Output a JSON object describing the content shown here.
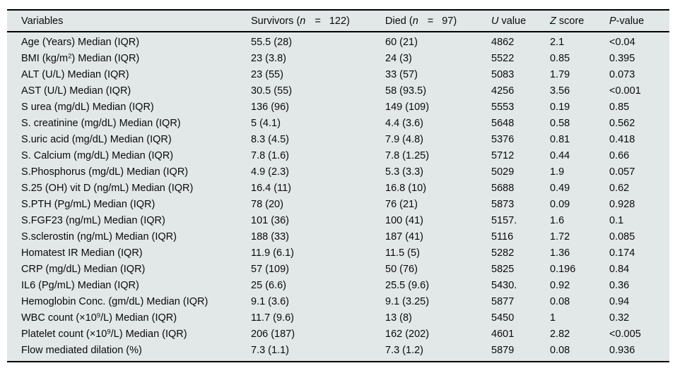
{
  "table": {
    "header": {
      "variables": "Variables",
      "survivors": {
        "pre": "Survivors (",
        "n": "n",
        "eq": "=",
        "count": "122)"
      },
      "died": {
        "pre": "Died (",
        "n": "n",
        "eq": "=",
        "count": "97)"
      },
      "u_value": {
        "italic": "U",
        "rest": " value"
      },
      "z_score": {
        "italic": "Z",
        "rest": " score"
      },
      "p_value": {
        "italic": "P",
        "rest": "-value"
      }
    },
    "rows": [
      {
        "variable": [
          "Age (Years) Median (IQR)"
        ],
        "survivors": "55.5 (28)",
        "died": "60 (21)",
        "u": "4862",
        "z": "2.1",
        "p": "<0.04"
      },
      {
        "variable": [
          "BMI (kg/m",
          {
            "sup": "2"
          },
          ") Median (IQR)"
        ],
        "survivors": "23 (3.8)",
        "died": "24 (3)",
        "u": "5522",
        "z": "0.85",
        "p": "0.395"
      },
      {
        "variable": [
          "ALT (U/L) Median (IQR)"
        ],
        "survivors": "23 (55)",
        "died": "33 (57)",
        "u": "5083",
        "z": "1.79",
        "p": "0.073"
      },
      {
        "variable": [
          "AST (U/L) Median (IQR)"
        ],
        "survivors": "30.5 (55)",
        "died": "58 (93.5)",
        "u": "4256",
        "z": "3.56",
        "p": "<0.001"
      },
      {
        "variable": [
          "S urea (mg/dL) Median (IQR)"
        ],
        "survivors": "136 (96)",
        "died": "149 (109)",
        "u": "5553",
        "z": "0.19",
        "p": "0.85"
      },
      {
        "variable": [
          "S. creatinine (mg/dL) Median (IQR)"
        ],
        "survivors": "5 (4.1)",
        "died": "4.4 (3.6)",
        "u": "5648",
        "z": "0.58",
        "p": "0.562"
      },
      {
        "variable": [
          "S.uric acid (mg/dL) Median (IQR)"
        ],
        "survivors": "8.3 (4.5)",
        "died": "7.9 (4.8)",
        "u": "5376",
        "z": "0.81",
        "p": "0.418"
      },
      {
        "variable": [
          "S. Calcium (mg/dL) Median (IQR)"
        ],
        "survivors": "7.8 (1.6)",
        "died": "7.8 (1.25)",
        "u": "5712",
        "z": "0.44",
        "p": "0.66"
      },
      {
        "variable": [
          "S.Phosphorus (mg/dL) Median (IQR)"
        ],
        "survivors": "4.9 (2.3)",
        "died": "5.3 (3.3)",
        "u": "5029",
        "z": "1.9",
        "p": "0.057"
      },
      {
        "variable": [
          "S.25 (OH) vit D (ng/mL) Median (IQR)"
        ],
        "survivors": "16.4 (11)",
        "died": "16.8 (10)",
        "u": "5688",
        "z": "0.49",
        "p": "0.62"
      },
      {
        "variable": [
          "S.PTH (Pg/mL) Median (IQR)"
        ],
        "survivors": "78 (20)",
        "died": "76 (21)",
        "u": "5873",
        "z": "0.09",
        "p": "0.928"
      },
      {
        "variable": [
          "S.FGF23 (ng/mL) Median (IQR)"
        ],
        "survivors": "101 (36)",
        "died": "100 (41)",
        "u": "5157.",
        "z": "1.6",
        "p": "0.1"
      },
      {
        "variable": [
          "S.sclerostin (ng/mL) Median (IQR)"
        ],
        "survivors": "188 (33)",
        "died": "187 (41)",
        "u": "5116",
        "z": "1.72",
        "p": "0.085"
      },
      {
        "variable": [
          "Homatest IR Median (IQR)"
        ],
        "survivors": "11.9 (6.1)",
        "died": "11.5 (5)",
        "u": "5282",
        "z": "1.36",
        "p": "0.174"
      },
      {
        "variable": [
          "CRP (mg/dL) Median (IQR)"
        ],
        "survivors": "57 (109)",
        "died": "50 (76)",
        "u": "5825",
        "z": "0.196",
        "p": "0.84"
      },
      {
        "variable": [
          "IL6 (Pg/mL) Median (IQR)"
        ],
        "survivors": "25 (6.6)",
        "died": "25.5 (9.6)",
        "u": "5430.",
        "z": "0.92",
        "p": "0.36"
      },
      {
        "variable": [
          "Hemoglobin Conc. (gm/dL) Median (IQR)"
        ],
        "survivors": "9.1 (3.6)",
        "died": "9.1 (3.25)",
        "u": "5877",
        "z": "0.08",
        "p": "0.94"
      },
      {
        "variable": [
          "WBC count (×10",
          {
            "sup": "9"
          },
          "/L) Median (IQR)"
        ],
        "survivors": "11.7 (9.6)",
        "died": "13 (8)",
        "u": "5450",
        "z": "1",
        "p": "0.32"
      },
      {
        "variable": [
          "Platelet count (×10",
          {
            "sup": "9"
          },
          "/L) Median (IQR)"
        ],
        "survivors": "206 (187)",
        "died": "162 (202)",
        "u": "4601",
        "z": "2.82",
        "p": "<0.005"
      },
      {
        "variable": [
          "Flow mediated dilation (%)"
        ],
        "survivors": "7.3 (1.1)",
        "died": "7.3 (1.2)",
        "u": "5879",
        "z": "0.08",
        "p": "0.936"
      }
    ],
    "colors": {
      "table_background": "#e2e8e8",
      "rule": "#000000",
      "text": "#0a0a0a"
    }
  }
}
